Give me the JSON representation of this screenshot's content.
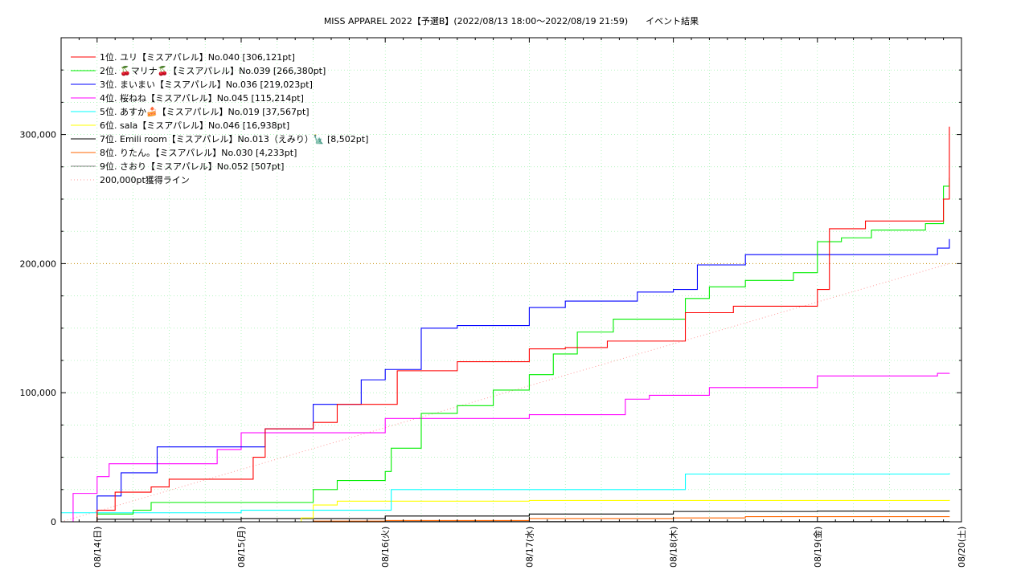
{
  "chart_data": {
    "type": "line",
    "title": "MISS APPAREL 2022【予選B】(2022/08/13 18:00～2022/08/19 21:59)　　イベント結果",
    "xlabel": "",
    "ylabel": "",
    "ylim": [
      0,
      375000
    ],
    "x_range": [
      "2022-08-13 18:00",
      "2022-08-20 00:00"
    ],
    "x_ticks": [
      "08/14(日)",
      "08/15(月)",
      "08/16(火)",
      "08/17(水)",
      "08/18(木)",
      "08/19(金)",
      "08/20(土)"
    ],
    "y_ticks": [
      {
        "value": 0,
        "label": "0"
      },
      {
        "value": 100000,
        "label": "100,000"
      },
      {
        "value": 200000,
        "label": "200,000"
      },
      {
        "value": 300000,
        "label": "300,000"
      }
    ],
    "grid": true,
    "legend_position": "top-left",
    "series": [
      {
        "name": "1位. ユリ【ミスアパレル】No.040 [306,121pt]",
        "color": "#ff0000",
        "x": [
          "2022-08-13 18:00",
          "2022-08-14 00:00",
          "2022-08-14 03:00",
          "2022-08-14 09:00",
          "2022-08-14 12:00",
          "2022-08-15 00:00",
          "2022-08-15 02:00",
          "2022-08-15 04:00",
          "2022-08-15 12:00",
          "2022-08-15 16:00",
          "2022-08-15 18:00",
          "2022-08-16 00:00",
          "2022-08-16 02:00",
          "2022-08-16 12:00",
          "2022-08-16 18:00",
          "2022-08-17 00:00",
          "2022-08-17 06:00",
          "2022-08-17 13:00",
          "2022-08-17 22:00",
          "2022-08-18 02:00",
          "2022-08-18 10:00",
          "2022-08-18 22:00",
          "2022-08-19 00:00",
          "2022-08-19 02:00",
          "2022-08-19 08:00",
          "2022-08-19 20:00",
          "2022-08-19 21:00",
          "2022-08-19 21:59"
        ],
        "values": [
          0,
          9000,
          23000,
          27000,
          33000,
          33000,
          50000,
          72000,
          77000,
          91000,
          91000,
          91000,
          117000,
          124000,
          124000,
          134000,
          135000,
          140000,
          140000,
          162000,
          167000,
          167000,
          180000,
          227000,
          233000,
          233000,
          250000,
          306121
        ]
      },
      {
        "name": "2位. 🍒マリナ🍒【ミスアパレル】No.039 [266,380pt]",
        "color": "#00ee00",
        "x": [
          "2022-08-13 18:00",
          "2022-08-14 00:00",
          "2022-08-14 06:00",
          "2022-08-14 09:00",
          "2022-08-15 00:00",
          "2022-08-15 12:00",
          "2022-08-15 16:00",
          "2022-08-16 00:00",
          "2022-08-16 01:00",
          "2022-08-16 06:00",
          "2022-08-16 12:00",
          "2022-08-16 18:00",
          "2022-08-17 00:00",
          "2022-08-17 04:00",
          "2022-08-17 08:00",
          "2022-08-17 14:00",
          "2022-08-17 21:00",
          "2022-08-18 02:00",
          "2022-08-18 06:00",
          "2022-08-18 12:00",
          "2022-08-18 20:00",
          "2022-08-19 00:00",
          "2022-08-19 04:00",
          "2022-08-19 09:00",
          "2022-08-19 12:00",
          "2022-08-19 18:00",
          "2022-08-19 21:00",
          "2022-08-19 21:59"
        ],
        "values": [
          0,
          6000,
          9000,
          15000,
          15000,
          25000,
          32000,
          39000,
          57000,
          84000,
          90000,
          102000,
          114000,
          130000,
          147000,
          157000,
          157000,
          173000,
          182000,
          187000,
          193000,
          217000,
          220000,
          226000,
          226000,
          231000,
          260000,
          266380
        ]
      },
      {
        "name": "3位. まいまい【ミスアパレル】No.036 [219,023pt]",
        "color": "#0000ff",
        "x": [
          "2022-08-13 18:00",
          "2022-08-14 00:00",
          "2022-08-14 04:00",
          "2022-08-14 10:00",
          "2022-08-15 00:00",
          "2022-08-15 04:00",
          "2022-08-15 12:00",
          "2022-08-15 16:00",
          "2022-08-15 20:00",
          "2022-08-16 00:00",
          "2022-08-16 06:00",
          "2022-08-16 12:00",
          "2022-08-16 18:00",
          "2022-08-17 00:00",
          "2022-08-17 06:00",
          "2022-08-17 12:00",
          "2022-08-17 18:00",
          "2022-08-18 00:00",
          "2022-08-18 04:00",
          "2022-08-18 12:00",
          "2022-08-18 18:00",
          "2022-08-19 00:00",
          "2022-08-19 08:00",
          "2022-08-19 16:00",
          "2022-08-19 20:00",
          "2022-08-19 21:59"
        ],
        "values": [
          0,
          20000,
          38000,
          58000,
          58000,
          72000,
          91000,
          91000,
          110000,
          118000,
          150000,
          152000,
          152000,
          166000,
          171000,
          171000,
          178000,
          180000,
          199000,
          207000,
          207000,
          207000,
          207000,
          207000,
          212000,
          219023
        ]
      },
      {
        "name": "4位. 桜ねね【ミスアパレル】No.045 [115,214pt]",
        "color": "#ff00ff",
        "x": [
          "2022-08-13 18:00",
          "2022-08-13 20:00",
          "2022-08-14 00:00",
          "2022-08-14 02:00",
          "2022-08-14 16:00",
          "2022-08-14 20:00",
          "2022-08-15 00:00",
          "2022-08-15 18:00",
          "2022-08-16 00:00",
          "2022-08-16 14:00",
          "2022-08-17 00:00",
          "2022-08-17 12:00",
          "2022-08-17 16:00",
          "2022-08-17 20:00",
          "2022-08-18 06:00",
          "2022-08-18 12:00",
          "2022-08-18 18:00",
          "2022-08-19 00:00",
          "2022-08-19 12:00",
          "2022-08-19 20:00",
          "2022-08-19 21:59"
        ],
        "values": [
          0,
          22000,
          35000,
          45000,
          45000,
          56000,
          69000,
          69000,
          80000,
          80000,
          83000,
          83000,
          95000,
          98000,
          104000,
          104000,
          104000,
          113000,
          113000,
          115000,
          115214
        ]
      },
      {
        "name": "5位. あすか🍰【ミスアパレル】No.019 [37,567pt]",
        "color": "#00ffff",
        "x": [
          "2022-08-13 18:00",
          "2022-08-15 00:00",
          "2022-08-16 00:00",
          "2022-08-16 01:00",
          "2022-08-17 00:00",
          "2022-08-18 00:00",
          "2022-08-18 02:00",
          "2022-08-19 00:00",
          "2022-08-19 21:59"
        ],
        "values": [
          7000,
          9000,
          9000,
          25000,
          25000,
          25000,
          37000,
          37000,
          37567
        ]
      },
      {
        "name": "6位. sala【ミスアパレル】No.046 [16,938pt]",
        "color": "#ffff00",
        "x": [
          "2022-08-13 18:00",
          "2022-08-15 10:00",
          "2022-08-15 12:00",
          "2022-08-15 16:00",
          "2022-08-17 00:00",
          "2022-08-19 21:59"
        ],
        "values": [
          0,
          3000,
          13000,
          16000,
          16500,
          16938
        ]
      },
      {
        "name": "7位. Emili room【ミスアパレル】No.013（えみり）🗽 [8,502pt]",
        "color": "#000000",
        "x": [
          "2022-08-13 18:00",
          "2022-08-14 00:00",
          "2022-08-15 00:00",
          "2022-08-16 00:00",
          "2022-08-17 00:00",
          "2022-08-18 00:00",
          "2022-08-19 00:00",
          "2022-08-19 21:59"
        ],
        "values": [
          0,
          2000,
          2500,
          4500,
          6000,
          8000,
          8300,
          8502
        ]
      },
      {
        "name": "8位. りたん。【ミスアパレル】No.030 [4,233pt]",
        "color": "#ff6600",
        "x": [
          "2022-08-13 18:00",
          "2022-08-15 12:00",
          "2022-08-16 00:00",
          "2022-08-17 00:00",
          "2022-08-18 00:00",
          "2022-08-18 12:00",
          "2022-08-19 21:59"
        ],
        "values": [
          0,
          500,
          1000,
          2500,
          3000,
          4000,
          4233
        ]
      },
      {
        "name": "9位. さおり【ミスアパレル】No.052 [507pt]",
        "color": "#888888",
        "x": [
          "2022-08-13 18:00",
          "2022-08-16 00:00",
          "2022-08-19 21:59"
        ],
        "values": [
          0,
          300,
          507
        ]
      }
    ],
    "reference_line": {
      "name": "200,000pt獲得ライン",
      "color": "#ff9999",
      "x": [
        "2022-08-13 18:00",
        "2022-08-19 21:59"
      ],
      "values": [
        0,
        200000
      ]
    },
    "threshold_line": {
      "value": 200000,
      "color": "#cc8800"
    }
  }
}
